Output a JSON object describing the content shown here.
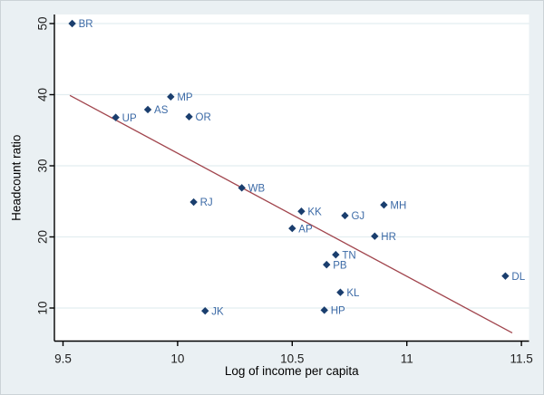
{
  "figure": {
    "background_color": "#eaf0f3",
    "plot_background_color": "#ffffff",
    "border_color": "#ccd3d7"
  },
  "chart_data": {
    "type": "scatter",
    "title": "",
    "xlabel": "Log of income per capita",
    "ylabel": "Headcount ratio",
    "xlim": [
      9.46,
      11.53
    ],
    "ylim": [
      5.2,
      51.3
    ],
    "x_ticks": [
      9.5,
      10,
      10.5,
      11,
      11.5
    ],
    "x_tick_labels": [
      "9.5",
      "10",
      "10.5",
      "11",
      "11.5"
    ],
    "y_ticks": [
      10,
      20,
      30,
      40,
      50
    ],
    "y_tick_labels": [
      "10",
      "20",
      "30",
      "40",
      "50"
    ],
    "grid": "horizontal-only",
    "legend": "none",
    "marker_shape": "diamond",
    "points": [
      {
        "label": "BR",
        "x": 9.54,
        "y": 50.0
      },
      {
        "label": "UP",
        "x": 9.73,
        "y": 36.8
      },
      {
        "label": "AS",
        "x": 9.87,
        "y": 37.9
      },
      {
        "label": "MP",
        "x": 9.97,
        "y": 39.7
      },
      {
        "label": "OR",
        "x": 10.05,
        "y": 36.9
      },
      {
        "label": "RJ",
        "x": 10.07,
        "y": 24.9
      },
      {
        "label": "JK",
        "x": 10.12,
        "y": 9.6
      },
      {
        "label": "WB",
        "x": 10.28,
        "y": 26.9
      },
      {
        "label": "AP",
        "x": 10.5,
        "y": 21.2
      },
      {
        "label": "KK",
        "x": 10.54,
        "y": 23.6
      },
      {
        "label": "HP",
        "x": 10.64,
        "y": 9.7
      },
      {
        "label": "PB",
        "x": 10.65,
        "y": 16.1
      },
      {
        "label": "TN",
        "x": 10.69,
        "y": 17.5
      },
      {
        "label": "KL",
        "x": 10.71,
        "y": 12.2
      },
      {
        "label": "GJ",
        "x": 10.73,
        "y": 23.0
      },
      {
        "label": "HR",
        "x": 10.86,
        "y": 20.1
      },
      {
        "label": "MH",
        "x": 10.9,
        "y": 24.5
      },
      {
        "label": "DL",
        "x": 11.43,
        "y": 14.5
      }
    ],
    "trend_line": {
      "x1": 9.53,
      "y1": 39.9,
      "x2": 11.46,
      "y2": 6.5
    },
    "colors": {
      "marker": "#1a3e6e",
      "point_label": "#3c6aa6",
      "trend": "#a1454d",
      "grid": "#e2edf0",
      "axis": "#000000",
      "tick_label": "#1f1f1f",
      "axis_title": "#000000"
    }
  }
}
